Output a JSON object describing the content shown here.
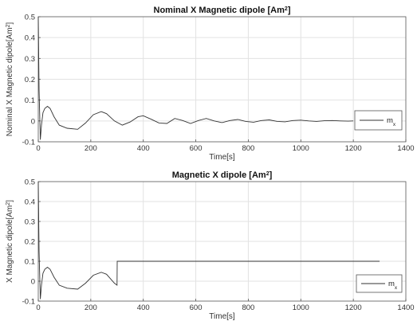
{
  "chart_data": [
    {
      "type": "line",
      "title": "Nominal X Magnetic dipole [Am",
      "title_sup": "2",
      "title_end": "]",
      "xlabel": "Time[s]",
      "ylabel": "Nominal X Magnetic dipole[Am",
      "ylabel_sup": "2",
      "ylabel_end": "]",
      "xlim": [
        0,
        1400
      ],
      "ylim": [
        -0.1,
        0.5
      ],
      "xticks": [
        0,
        200,
        400,
        600,
        800,
        1000,
        1200,
        1400
      ],
      "yticks": [
        -0.1,
        0,
        0.1,
        0.2,
        0.3,
        0.4,
        0.5
      ],
      "xtick_labels": [
        "0",
        "200",
        "400",
        "600",
        "800",
        "1000",
        "1200",
        "1400"
      ],
      "ytick_labels": [
        "-0.1",
        "0",
        "0.1",
        "0.2",
        "0.3",
        "0.4",
        "0.5"
      ],
      "grid": true,
      "legend_position": "right",
      "series": [
        {
          "name": "m",
          "name_sub": "x",
          "color": "#333333",
          "x": [
            0,
            3,
            8,
            12,
            18,
            25,
            35,
            45,
            60,
            80,
            110,
            150,
            180,
            210,
            240,
            260,
            290,
            320,
            350,
            380,
            400,
            430,
            460,
            490,
            520,
            550,
            580,
            610,
            640,
            670,
            700,
            730,
            760,
            790,
            820,
            850,
            880,
            910,
            940,
            970,
            1000,
            1030,
            1060,
            1090,
            1120,
            1150,
            1180,
            1200
          ],
          "y": [
            0.5,
            0.15,
            -0.09,
            -0.02,
            0.04,
            0.06,
            0.07,
            0.06,
            0.02,
            -0.02,
            -0.035,
            -0.04,
            -0.01,
            0.03,
            0.045,
            0.035,
            0.0,
            -0.02,
            -0.005,
            0.02,
            0.025,
            0.008,
            -0.01,
            -0.012,
            0.012,
            0.002,
            -0.012,
            0.002,
            0.012,
            0.0,
            -0.008,
            0.002,
            0.007,
            -0.002,
            -0.006,
            0.002,
            0.005,
            -0.002,
            -0.004,
            0.002,
            0.004,
            0.0,
            -0.002,
            0.001,
            0.002,
            0.0,
            -0.001,
            0.0
          ]
        }
      ]
    },
    {
      "type": "line",
      "title": "Magnetic X dipole [Am",
      "title_sup": "2",
      "title_end": "]",
      "xlabel": "Time[s]",
      "ylabel": "X Magnetic dipole[Am",
      "ylabel_sup": "2",
      "ylabel_end": "]",
      "xlim": [
        0,
        1400
      ],
      "ylim": [
        -0.1,
        0.5
      ],
      "xticks": [
        0,
        200,
        400,
        600,
        800,
        1000,
        1200,
        1400
      ],
      "yticks": [
        -0.1,
        0,
        0.1,
        0.2,
        0.3,
        0.4,
        0.5
      ],
      "xtick_labels": [
        "0",
        "200",
        "400",
        "600",
        "800",
        "1000",
        "1200",
        "1400"
      ],
      "ytick_labels": [
        "-0.1",
        "0",
        "0.1",
        "0.2",
        "0.3",
        "0.4",
        "0.5"
      ],
      "grid": true,
      "legend_position": "bottom-right",
      "series": [
        {
          "name": "m",
          "name_sub": "x",
          "color": "#333333",
          "x": [
            0,
            3,
            8,
            12,
            18,
            25,
            35,
            45,
            60,
            80,
            110,
            150,
            180,
            210,
            240,
            260,
            290,
            300,
            300.5,
            1300
          ],
          "y": [
            0.5,
            0.15,
            -0.09,
            -0.02,
            0.04,
            0.06,
            0.07,
            0.06,
            0.02,
            -0.02,
            -0.035,
            -0.04,
            -0.01,
            0.03,
            0.045,
            0.035,
            -0.01,
            -0.02,
            0.1,
            0.1
          ]
        }
      ]
    }
  ]
}
